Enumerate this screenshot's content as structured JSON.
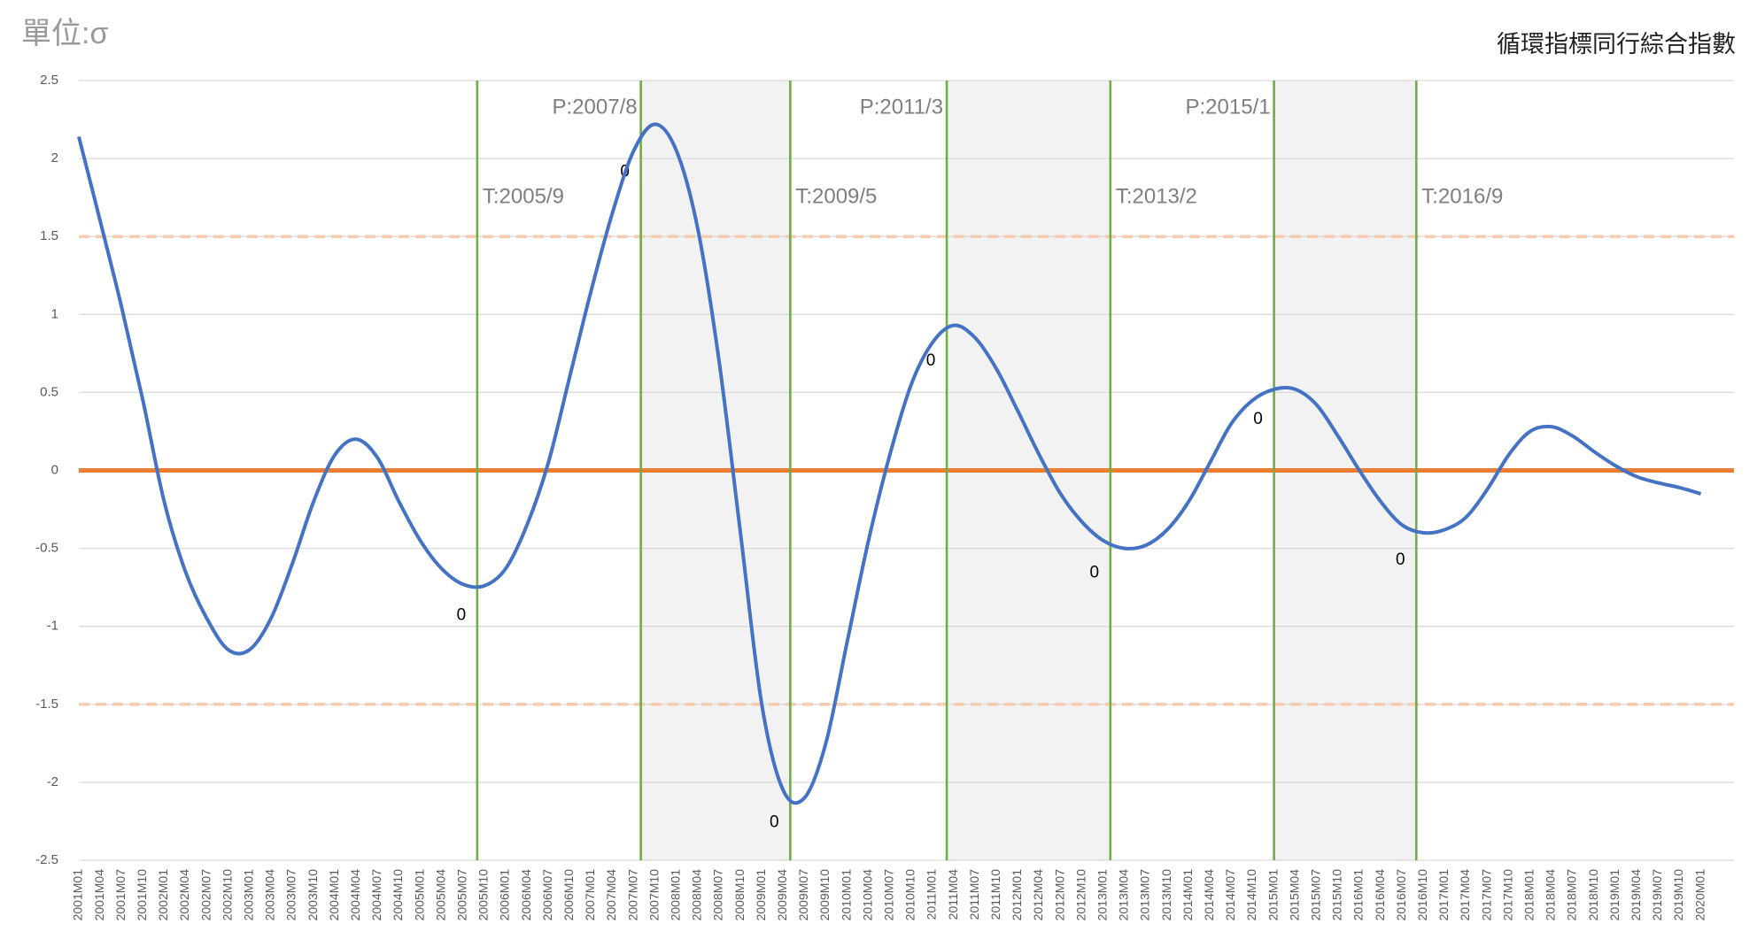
{
  "chart_data": {
    "type": "line",
    "title": "循環指標同行綜合指數",
    "unit_label": "單位:σ",
    "categories": [
      "2001M01",
      "2001M04",
      "2001M07",
      "2001M10",
      "2002M01",
      "2002M04",
      "2002M07",
      "2002M10",
      "2003M01",
      "2003M04",
      "2003M07",
      "2003M10",
      "2004M01",
      "2004M04",
      "2004M07",
      "2004M10",
      "2005M01",
      "2005M04",
      "2005M07",
      "2005M10",
      "2006M01",
      "2006M04",
      "2006M07",
      "2006M10",
      "2007M01",
      "2007M04",
      "2007M07",
      "2007M10",
      "2008M01",
      "2008M04",
      "2008M07",
      "2008M10",
      "2009M01",
      "2009M04",
      "2009M07",
      "2009M10",
      "2010M01",
      "2010M04",
      "2010M07",
      "2010M10",
      "2011M01",
      "2011M04",
      "2011M07",
      "2011M10",
      "2012M01",
      "2012M04",
      "2012M07",
      "2012M10",
      "2013M01",
      "2013M04",
      "2013M07",
      "2013M10",
      "2014M01",
      "2014M04",
      "2014M07",
      "2014M10",
      "2015M01",
      "2015M04",
      "2015M07",
      "2015M10",
      "2016M01",
      "2016M04",
      "2016M07",
      "2016M10",
      "2017M01",
      "2017M04",
      "2017M07",
      "2017M10",
      "2018M01",
      "2018M04",
      "2018M07",
      "2018M10",
      "2019M01",
      "2019M04",
      "2019M07",
      "2019M10",
      "2020M01"
    ],
    "series": [
      {
        "color": "#4472c4",
        "values": [
          2.14,
          1.6,
          1.05,
          0.45,
          -0.2,
          -0.65,
          -0.95,
          -1.15,
          -1.15,
          -0.95,
          -0.6,
          -0.2,
          0.1,
          0.2,
          0.08,
          -0.2,
          -0.45,
          -0.63,
          -0.73,
          -0.74,
          -0.63,
          -0.35,
          0.05,
          0.6,
          1.15,
          1.65,
          2.05,
          2.22,
          2.05,
          1.55,
          0.7,
          -0.4,
          -1.5,
          -2.05,
          -2.1,
          -1.75,
          -1.1,
          -0.45,
          0.1,
          0.55,
          0.82,
          0.93,
          0.85,
          0.65,
          0.38,
          0.1,
          -0.15,
          -0.33,
          -0.45,
          -0.5,
          -0.48,
          -0.38,
          -0.2,
          0.05,
          0.3,
          0.45,
          0.52,
          0.52,
          0.42,
          0.22,
          0.0,
          -0.2,
          -0.35,
          -0.4,
          -0.38,
          -0.3,
          -0.12,
          0.1,
          0.25,
          0.28,
          0.22,
          0.12,
          0.03,
          -0.04,
          -0.08,
          -0.11,
          -0.15
        ]
      }
    ],
    "reference_lines": [
      {
        "value": 0,
        "color": "#ed7d31",
        "style": "solid"
      },
      {
        "value": 1.5,
        "color": "#f8cbad",
        "style": "dashed"
      },
      {
        "value": -1.5,
        "color": "#f8cbad",
        "style": "dashed"
      }
    ],
    "turning_points": [
      {
        "label": "T:2005/9",
        "point_label": "0"
      },
      {
        "label": "P:2007/8",
        "point_label": "0"
      },
      {
        "label": "T:2009/5",
        "point_label": "0"
      },
      {
        "label": "P:2011/3",
        "point_label": "0"
      },
      {
        "label": "T:2013/2",
        "point_label": "0"
      },
      {
        "label": "P:2015/1",
        "point_label": "0"
      },
      {
        "label": "T:2016/9",
        "point_label": "0"
      }
    ],
    "turning_line_color": "#70ad47",
    "shade_color": "#f2f2f2",
    "ylim": [
      -2.5,
      2.5
    ],
    "yticks": [
      -2.5,
      -2,
      -1.5,
      -1,
      -0.5,
      0,
      0.5,
      1,
      1.5,
      2,
      2.5
    ],
    "grid": true
  }
}
